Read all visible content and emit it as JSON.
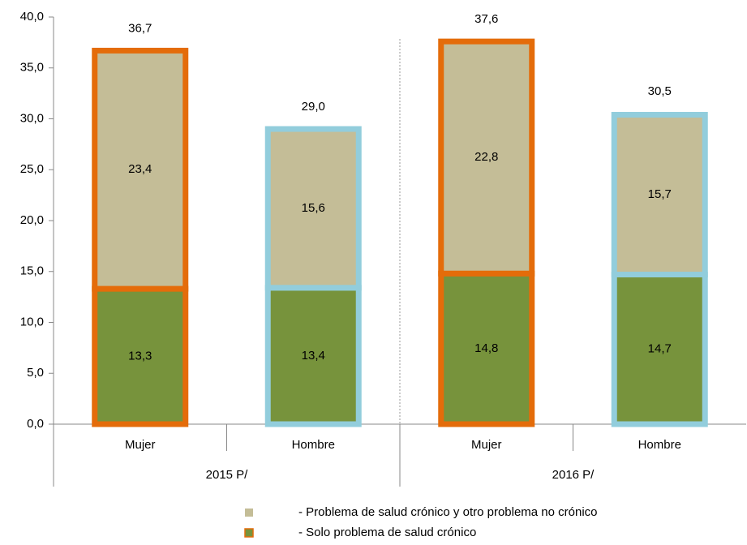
{
  "chart_data": {
    "type": "stacked_bar",
    "categories": [
      "Mujer",
      "Hombre",
      "Mujer",
      "Hombre"
    ],
    "groups": [
      "2015 P/",
      "2016 P/"
    ],
    "series": [
      {
        "name": "- Solo problema de salud crónico",
        "color": "#77933c",
        "values": [
          13.3,
          13.4,
          14.8,
          14.7
        ],
        "value_labels": [
          "13,3",
          "13,4",
          "14,8",
          "14,7"
        ]
      },
      {
        "name": "- Problema de salud crónico y otro problema no crónico",
        "color": "#c4bd97",
        "values": [
          23.4,
          15.6,
          22.8,
          15.7
        ],
        "value_labels": [
          "23,4",
          "15,6",
          "22,8",
          "15,7"
        ]
      }
    ],
    "totals": [
      36.7,
      29.0,
      37.6,
      30.5
    ],
    "total_labels": [
      "36,7",
      "29,0",
      "37,6",
      "30,5"
    ],
    "outline_colors": [
      "#e46c0a",
      "#92cddc",
      "#e46c0a",
      "#92cddc"
    ],
    "ylim": [
      0,
      40
    ],
    "yticks": [
      {
        "value": 0,
        "label": "0,0"
      },
      {
        "value": 5,
        "label": "5,0"
      },
      {
        "value": 10,
        "label": "10,0"
      },
      {
        "value": 15,
        "label": "15,0"
      },
      {
        "value": 20,
        "label": "20,0"
      },
      {
        "value": 25,
        "label": "25,0"
      },
      {
        "value": 30,
        "label": "30,0"
      },
      {
        "value": 35,
        "label": "35,0"
      },
      {
        "value": 40,
        "label": "40,0"
      }
    ],
    "grid": false
  }
}
